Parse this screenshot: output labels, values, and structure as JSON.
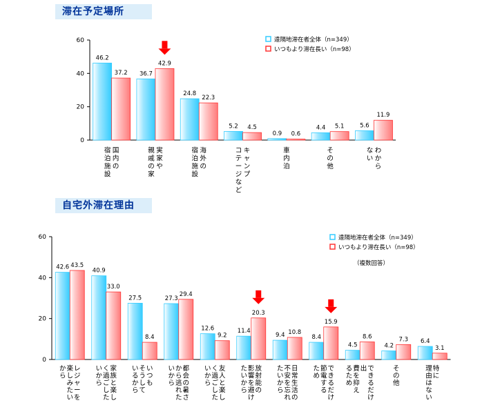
{
  "chart_data": [
    {
      "type": "bar",
      "title": "滞在予定場所",
      "ylim": [
        0,
        60
      ],
      "yticks": [
        0,
        20,
        40,
        60
      ],
      "categories": [
        [
          "宿泊施設",
          "国内の"
        ],
        [
          "親戚の家",
          "実家や"
        ],
        [
          "宿泊施設",
          "海外の"
        ],
        [
          "コテージなど",
          "キャンプ"
        ],
        [
          "車内泊"
        ],
        [
          "その他"
        ],
        [
          "ない",
          "わから"
        ]
      ],
      "series": [
        {
          "name": "遠隔地滞在者全体（n=349）",
          "color": "#33ccff",
          "values": [
            46.2,
            36.7,
            24.8,
            5.2,
            0.9,
            4.4,
            5.6
          ]
        },
        {
          "name": "いつもより滞在長い（n=98）",
          "color": "#ff3333",
          "values": [
            37.2,
            42.9,
            22.3,
            4.5,
            0.6,
            5.1,
            11.9
          ]
        }
      ],
      "arrow_categories": [
        1
      ]
    },
    {
      "type": "bar",
      "title": "自宅外滞在理由",
      "ylim": [
        0,
        60
      ],
      "yticks": [
        0,
        20,
        40,
        60
      ],
      "note": "（複数回答）",
      "categories": [
        [
          "から",
          "楽しみたい",
          "レジャーを"
        ],
        [
          "いから",
          "く過ごした",
          "家族と楽し"
        ],
        [
          "いるから",
          "そうして",
          "いつも"
        ],
        [
          "いから",
          "から逃れた",
          "都会の暑さ"
        ],
        [
          "いから",
          "く過ごした",
          "友人と楽し"
        ],
        [
          "たいから",
          "影響を避け",
          "放射能の"
        ],
        [
          "たいから",
          "不安を忘れ",
          "日常生活の"
        ],
        [
          "ため",
          "節電する",
          "できるだけ"
        ],
        [
          "るため",
          "費を抑え",
          "出",
          "できるだけ"
        ],
        [
          "その他"
        ],
        [
          "理由はない",
          "特に"
        ]
      ],
      "series": [
        {
          "name": "遠隔地滞在者全体（n=349）",
          "color": "#33ccff",
          "values": [
            42.6,
            40.9,
            27.5,
            27.3,
            12.6,
            11.4,
            9.4,
            8.4,
            4.5,
            4.2,
            6.4
          ]
        },
        {
          "name": "いつもより滞在長い（n=98）",
          "color": "#ff3333",
          "values": [
            43.5,
            33.0,
            8.4,
            29.4,
            9.2,
            20.3,
            10.8,
            15.9,
            8.6,
            7.3,
            3.1
          ]
        }
      ],
      "arrow_categories": [
        5,
        7
      ]
    }
  ]
}
